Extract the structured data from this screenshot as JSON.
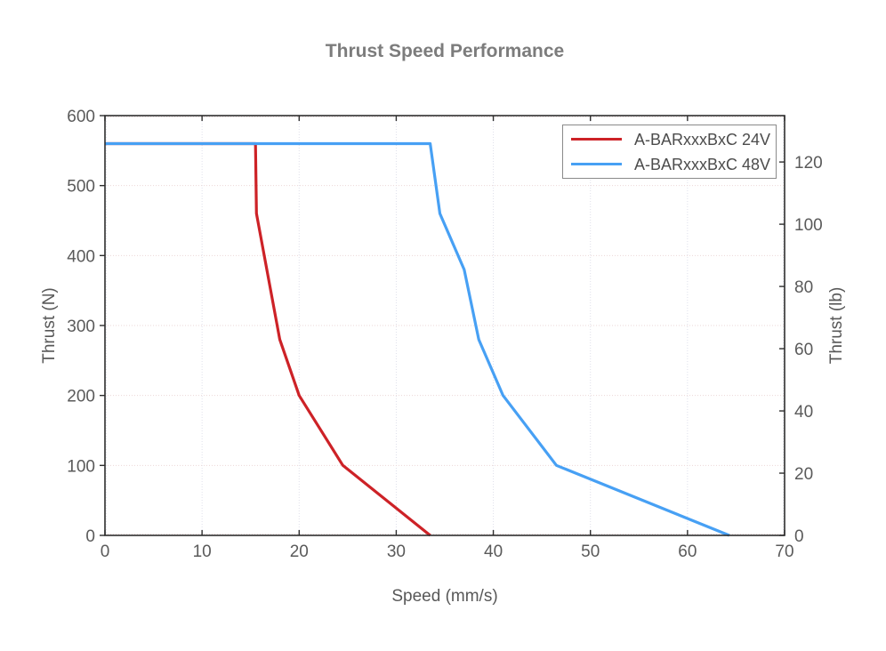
{
  "chart_data": {
    "type": "line",
    "title": "Thrust Speed Performance",
    "xlabel": "Speed (mm/s)",
    "ylabel_left": "Thrust (N)",
    "ylabel_right": "Thrust (lb)",
    "xlim": [
      0,
      70
    ],
    "ylim_left": [
      0,
      600
    ],
    "ylim_right": [
      0,
      134.9
    ],
    "x_ticks": [
      0,
      10,
      20,
      30,
      40,
      50,
      60,
      70
    ],
    "y_ticks_left": [
      0,
      100,
      200,
      300,
      400,
      500,
      600
    ],
    "y_ticks_right": [
      0,
      20,
      40,
      60,
      80,
      100,
      120
    ],
    "grid": true,
    "legend_position": "top-right-inside",
    "series": [
      {
        "name": "A-BARxxxBxC 24V",
        "color": "#cd2227",
        "points": [
          [
            0,
            560
          ],
          [
            15.5,
            560
          ],
          [
            15.6,
            460
          ],
          [
            18,
            280
          ],
          [
            20,
            200
          ],
          [
            24.5,
            100
          ],
          [
            33.5,
            0
          ]
        ]
      },
      {
        "name": "A-BARxxxBxC 48V",
        "color": "#47a0f4",
        "points": [
          [
            0,
            560
          ],
          [
            33.5,
            560
          ],
          [
            34.5,
            460
          ],
          [
            37,
            380
          ],
          [
            38.5,
            280
          ],
          [
            41,
            200
          ],
          [
            46.5,
            100
          ],
          [
            64.3,
            0
          ]
        ]
      }
    ]
  },
  "palette": {
    "title_text": "#7c7c7c",
    "axis_text": "#585858",
    "tick_text": "#5a5a5a",
    "plot_border": "#2e2e2e",
    "grid_horizontal": "#ebd7d7",
    "grid_vertical": "#dfe0ea",
    "legend_border": "#8a8a8a",
    "legend_text": "#4c4c4c",
    "background": "#ffffff"
  }
}
